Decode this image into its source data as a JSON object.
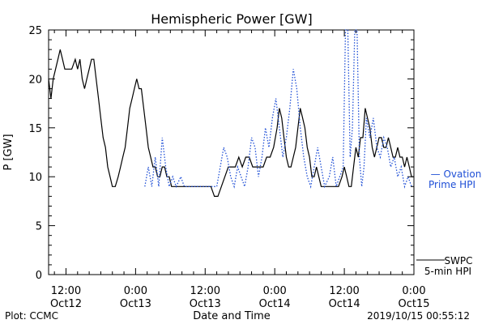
{
  "chart_data": {
    "type": "line",
    "title": "Hemispheric Power [GW]",
    "ylabel": "P [GW]",
    "xlabel": "Date and Time",
    "ylim": [
      0,
      25
    ],
    "yticks": [
      0,
      5,
      10,
      15,
      20,
      25
    ],
    "xlim_hours": [
      -15,
      48
    ],
    "xticks": [
      {
        "hour": -12,
        "label": [
          "12:00",
          "Oct12"
        ]
      },
      {
        "hour": 0,
        "label": [
          "0:00",
          "Oct13"
        ]
      },
      {
        "hour": 12,
        "label": [
          "12:00",
          "Oct13"
        ]
      },
      {
        "hour": 24,
        "label": [
          "0:00",
          "Oct14"
        ]
      },
      {
        "hour": 36,
        "label": [
          "12:00",
          "Oct14"
        ]
      },
      {
        "hour": 48,
        "label": [
          "0:00",
          "Oct15"
        ]
      }
    ],
    "series": [
      {
        "name": "SWPC 5-min HPI",
        "style": "solid",
        "color": "#000000",
        "points": [
          [
            -15.0,
            20
          ],
          [
            -14.6,
            18
          ],
          [
            -14.2,
            20
          ],
          [
            -13.8,
            21
          ],
          [
            -13.4,
            22
          ],
          [
            -13.0,
            23
          ],
          [
            -12.6,
            22
          ],
          [
            -12.2,
            21
          ],
          [
            -11.6,
            21
          ],
          [
            -11.0,
            21
          ],
          [
            -10.4,
            22
          ],
          [
            -10.0,
            21
          ],
          [
            -9.6,
            22
          ],
          [
            -9.2,
            20
          ],
          [
            -8.8,
            19
          ],
          [
            -8.4,
            20
          ],
          [
            -8.0,
            21
          ],
          [
            -7.6,
            22
          ],
          [
            -7.2,
            22
          ],
          [
            -6.8,
            20
          ],
          [
            -6.4,
            18
          ],
          [
            -6.0,
            16
          ],
          [
            -5.6,
            14
          ],
          [
            -5.2,
            13
          ],
          [
            -4.8,
            11
          ],
          [
            -4.4,
            10
          ],
          [
            -4.0,
            9
          ],
          [
            -3.5,
            9
          ],
          [
            -3.0,
            10
          ],
          [
            -2.6,
            11
          ],
          [
            -2.2,
            12
          ],
          [
            -1.8,
            13
          ],
          [
            -1.4,
            15
          ],
          [
            -1.0,
            17
          ],
          [
            -0.6,
            18
          ],
          [
            -0.2,
            19
          ],
          [
            0.2,
            20
          ],
          [
            0.6,
            19
          ],
          [
            1.0,
            19
          ],
          [
            1.4,
            17
          ],
          [
            1.8,
            15
          ],
          [
            2.2,
            13
          ],
          [
            2.6,
            12
          ],
          [
            3.0,
            11
          ],
          [
            3.4,
            11
          ],
          [
            3.8,
            10
          ],
          [
            4.2,
            10
          ],
          [
            4.6,
            11
          ],
          [
            5.0,
            11
          ],
          [
            5.4,
            10
          ],
          [
            5.8,
            10
          ],
          [
            6.2,
            9
          ],
          [
            7.0,
            9
          ],
          [
            8.0,
            9
          ],
          [
            9.0,
            9
          ],
          [
            10.0,
            9
          ],
          [
            11.0,
            9
          ],
          [
            12.0,
            9
          ],
          [
            13.0,
            9
          ],
          [
            13.6,
            8
          ],
          [
            14.2,
            8
          ],
          [
            14.8,
            9
          ],
          [
            15.4,
            10
          ],
          [
            16.0,
            11
          ],
          [
            16.6,
            11
          ],
          [
            17.2,
            11
          ],
          [
            17.8,
            12
          ],
          [
            18.4,
            11
          ],
          [
            19.0,
            12
          ],
          [
            19.6,
            12
          ],
          [
            20.2,
            11
          ],
          [
            20.8,
            11
          ],
          [
            21.4,
            11
          ],
          [
            22.0,
            11
          ],
          [
            22.6,
            12
          ],
          [
            23.2,
            12
          ],
          [
            23.8,
            13
          ],
          [
            24.4,
            15
          ],
          [
            24.8,
            17
          ],
          [
            25.2,
            16
          ],
          [
            25.6,
            14
          ],
          [
            26.0,
            12
          ],
          [
            26.4,
            11
          ],
          [
            26.8,
            11
          ],
          [
            27.2,
            12
          ],
          [
            27.6,
            13
          ],
          [
            28.0,
            15
          ],
          [
            28.4,
            17
          ],
          [
            28.8,
            16
          ],
          [
            29.2,
            15
          ],
          [
            29.6,
            13
          ],
          [
            30.0,
            12
          ],
          [
            30.4,
            10
          ],
          [
            30.8,
            10
          ],
          [
            31.2,
            11
          ],
          [
            31.6,
            10
          ],
          [
            32.0,
            9
          ],
          [
            33.0,
            9
          ],
          [
            34.0,
            9
          ],
          [
            35.0,
            9
          ],
          [
            35.6,
            10
          ],
          [
            36.0,
            11
          ],
          [
            36.4,
            10
          ],
          [
            36.8,
            9
          ],
          [
            37.2,
            9
          ],
          [
            37.6,
            11
          ],
          [
            38.0,
            13
          ],
          [
            38.4,
            12
          ],
          [
            38.8,
            14
          ],
          [
            39.2,
            14
          ],
          [
            39.6,
            17
          ],
          [
            40.0,
            16
          ],
          [
            40.4,
            15
          ],
          [
            40.8,
            13
          ],
          [
            41.2,
            12
          ],
          [
            41.6,
            13
          ],
          [
            42.0,
            14
          ],
          [
            42.4,
            14
          ],
          [
            42.8,
            13
          ],
          [
            43.2,
            13
          ],
          [
            43.6,
            14
          ],
          [
            44.0,
            13
          ],
          [
            44.4,
            12
          ],
          [
            44.8,
            12
          ],
          [
            45.2,
            13
          ],
          [
            45.6,
            12
          ],
          [
            46.0,
            12
          ],
          [
            46.4,
            11
          ],
          [
            46.8,
            12
          ],
          [
            47.2,
            11
          ],
          [
            47.6,
            10
          ],
          [
            48.0,
            10
          ],
          [
            48.3,
            10
          ]
        ]
      },
      {
        "name": "Ovation Prime HPI",
        "style": "dotted",
        "color": "#1f4fd6",
        "points": [
          [
            1.6,
            9
          ],
          [
            2.2,
            11
          ],
          [
            2.8,
            9
          ],
          [
            3.4,
            12
          ],
          [
            4.0,
            9
          ],
          [
            4.6,
            14
          ],
          [
            5.2,
            11
          ],
          [
            5.8,
            9
          ],
          [
            6.4,
            10
          ],
          [
            7.0,
            9
          ],
          [
            7.8,
            10
          ],
          [
            8.4,
            9
          ],
          [
            9.0,
            9
          ],
          [
            10.0,
            9
          ],
          [
            11.0,
            9
          ],
          [
            12.0,
            9
          ],
          [
            13.0,
            9
          ],
          [
            14.0,
            9
          ],
          [
            14.6,
            11
          ],
          [
            15.2,
            13
          ],
          [
            15.8,
            12
          ],
          [
            16.4,
            10
          ],
          [
            17.0,
            9
          ],
          [
            17.6,
            11
          ],
          [
            18.2,
            10
          ],
          [
            18.8,
            9
          ],
          [
            19.4,
            11
          ],
          [
            20.0,
            14
          ],
          [
            20.6,
            13
          ],
          [
            21.2,
            10
          ],
          [
            21.8,
            12
          ],
          [
            22.4,
            15
          ],
          [
            23.0,
            13
          ],
          [
            23.6,
            16
          ],
          [
            24.2,
            18
          ],
          [
            24.8,
            15
          ],
          [
            25.4,
            12
          ],
          [
            26.0,
            14
          ],
          [
            26.6,
            17
          ],
          [
            27.2,
            21
          ],
          [
            27.8,
            19
          ],
          [
            28.4,
            15
          ],
          [
            29.0,
            12
          ],
          [
            29.6,
            10
          ],
          [
            30.2,
            9
          ],
          [
            30.8,
            11
          ],
          [
            31.4,
            13
          ],
          [
            32.0,
            11
          ],
          [
            32.6,
            9
          ],
          [
            33.4,
            10
          ],
          [
            34.0,
            12
          ],
          [
            34.6,
            9
          ],
          [
            35.2,
            10
          ],
          [
            35.8,
            11
          ],
          [
            36.2,
            25
          ],
          [
            36.6,
            25
          ],
          [
            37.0,
            12
          ],
          [
            37.4,
            15
          ],
          [
            37.8,
            25
          ],
          [
            38.2,
            25
          ],
          [
            38.6,
            12
          ],
          [
            39.0,
            9
          ],
          [
            39.4,
            11
          ],
          [
            39.8,
            16
          ],
          [
            40.4,
            14
          ],
          [
            41.0,
            16
          ],
          [
            41.6,
            13
          ],
          [
            42.2,
            12
          ],
          [
            42.8,
            14
          ],
          [
            43.4,
            13
          ],
          [
            44.0,
            11
          ],
          [
            44.6,
            12
          ],
          [
            45.2,
            10
          ],
          [
            45.8,
            11
          ],
          [
            46.4,
            9
          ],
          [
            47.0,
            10
          ],
          [
            47.6,
            9
          ],
          [
            48.3,
            9
          ]
        ]
      }
    ],
    "legend": [
      {
        "lines": [
          "— Ovation",
          "Prime HPI"
        ],
        "color": "#1f4fd6",
        "position": "right"
      },
      {
        "lines": [
          "SWPC",
          "5-min HPI"
        ],
        "color": "#000000",
        "position": "bottom-right"
      }
    ]
  },
  "footer": {
    "left": "Plot: CCMC",
    "right": "2019/10/15 00:55:12"
  }
}
